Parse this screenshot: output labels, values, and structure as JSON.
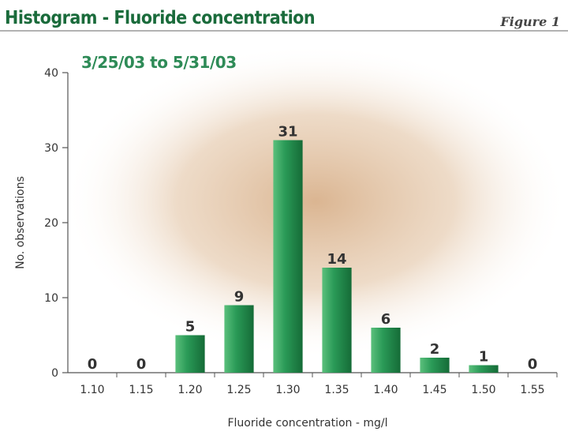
{
  "chart_data": {
    "type": "bar",
    "title": "Histogram - Fluoride concentration",
    "figure_label": "Figure 1",
    "subtitle": "3/25/03 to 5/31/03",
    "xlabel": "Fluoride concentration - mg/l",
    "ylabel": "No. observations",
    "categories": [
      "1.10",
      "1.15",
      "1.20",
      "1.25",
      "1.30",
      "1.35",
      "1.40",
      "1.45",
      "1.50",
      "1.55"
    ],
    "values": [
      0,
      0,
      5,
      9,
      31,
      14,
      6,
      2,
      1,
      0
    ],
    "ylim": [
      0,
      40
    ],
    "yticks": [
      0,
      10,
      20,
      30,
      40
    ],
    "grid": false,
    "colors": {
      "bar": "#1f8a4a",
      "bar_light": "#5bc07c",
      "title": "#1a6b3b",
      "subtitle": "#2e8b57",
      "axis": "#555555",
      "text": "#333333",
      "header_rule": "#999999",
      "glow": "#d9b48f"
    }
  }
}
